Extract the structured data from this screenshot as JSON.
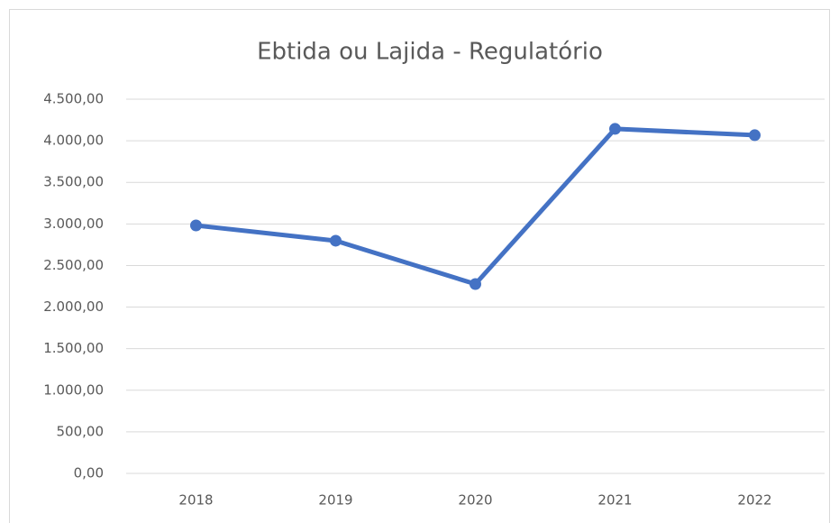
{
  "chart_data": {
    "type": "line",
    "title": "Ebtida ou Lajida - Regulatório",
    "categories": [
      "2018",
      "2019",
      "2020",
      "2021",
      "2022"
    ],
    "series": [
      {
        "name": "Ebtida ou Lajida - Regulatório",
        "color": "#4472c4",
        "values": [
          2982,
          2798,
          2277,
          4143,
          4067
        ]
      }
    ],
    "ylim": [
      0,
      4500
    ],
    "yticks": [
      {
        "value": 0,
        "label": "0,00"
      },
      {
        "value": 500,
        "label": "500,00"
      },
      {
        "value": 1000,
        "label": "1.000,00"
      },
      {
        "value": 1500,
        "label": "1.500,00"
      },
      {
        "value": 2000,
        "label": "2.000,00"
      },
      {
        "value": 2500,
        "label": "2.500,00"
      },
      {
        "value": 3000,
        "label": "3.000,00"
      },
      {
        "value": 3500,
        "label": "3.500,00"
      },
      {
        "value": 4000,
        "label": "4.000,00"
      },
      {
        "value": 4500,
        "label": "4.500,00"
      }
    ],
    "grid": true
  }
}
